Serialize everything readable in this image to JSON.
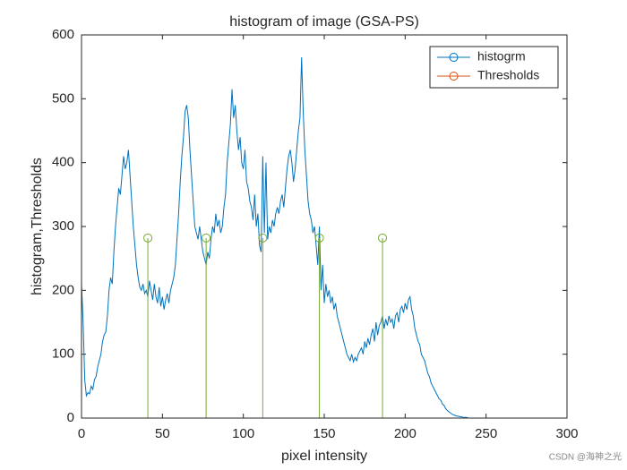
{
  "chart_data": {
    "type": "line",
    "title": "histogram of image (GSA-PS)",
    "x_label": "pixel intensity",
    "y_label": "histogram,Thresholds",
    "watermark": "CSDN @海神之光",
    "xlim": [
      0,
      300
    ],
    "xticks": [
      0,
      50,
      100,
      150,
      200,
      250,
      300
    ],
    "ylim": [
      0,
      600
    ],
    "yticks": [
      0,
      100,
      200,
      300,
      400,
      500,
      600
    ],
    "legend": "top-right",
    "series": [
      {
        "name": "histogrm",
        "color": "#0072bd",
        "style": "line",
        "x": [
          0,
          1,
          2,
          3,
          4,
          5,
          6,
          7,
          8,
          9,
          10,
          11,
          12,
          13,
          14,
          15,
          16,
          17,
          18,
          19,
          20,
          21,
          22,
          23,
          24,
          25,
          26,
          27,
          28,
          29,
          30,
          31,
          32,
          33,
          34,
          35,
          36,
          37,
          38,
          39,
          40,
          41,
          42,
          43,
          44,
          45,
          46,
          47,
          48,
          49,
          50,
          51,
          52,
          53,
          54,
          55,
          56,
          57,
          58,
          59,
          60,
          61,
          62,
          63,
          64,
          65,
          66,
          67,
          68,
          69,
          70,
          71,
          72,
          73,
          74,
          75,
          76,
          77,
          78,
          79,
          80,
          81,
          82,
          83,
          84,
          85,
          86,
          87,
          88,
          89,
          90,
          91,
          92,
          93,
          94,
          95,
          96,
          97,
          98,
          99,
          100,
          101,
          102,
          103,
          104,
          105,
          106,
          107,
          108,
          109,
          110,
          111,
          112,
          113,
          114,
          115,
          116,
          117,
          118,
          119,
          120,
          121,
          122,
          123,
          124,
          125,
          126,
          127,
          128,
          129,
          130,
          131,
          132,
          133,
          134,
          135,
          136,
          137,
          138,
          139,
          140,
          141,
          142,
          143,
          144,
          145,
          146,
          147,
          148,
          149,
          150,
          151,
          152,
          153,
          154,
          155,
          156,
          157,
          158,
          159,
          160,
          161,
          162,
          163,
          164,
          165,
          166,
          167,
          168,
          169,
          170,
          171,
          172,
          173,
          174,
          175,
          176,
          177,
          178,
          179,
          180,
          181,
          182,
          183,
          184,
          185,
          186,
          187,
          188,
          189,
          190,
          191,
          192,
          193,
          194,
          195,
          196,
          197,
          198,
          199,
          200,
          201,
          202,
          203,
          204,
          205,
          206,
          207,
          208,
          209,
          210,
          211,
          212,
          213,
          214,
          215,
          216,
          217,
          218,
          219,
          220,
          221,
          222,
          223,
          224,
          225,
          226,
          227,
          228,
          229,
          230,
          231,
          232,
          233,
          234,
          235,
          236,
          237,
          238,
          239,
          240,
          241,
          242,
          243,
          244,
          245,
          246,
          247,
          248,
          249,
          250,
          251,
          252,
          253,
          254,
          255
        ],
        "values": [
          210,
          150,
          60,
          35,
          40,
          38,
          50,
          45,
          60,
          65,
          80,
          90,
          100,
          120,
          130,
          135,
          160,
          200,
          220,
          210,
          260,
          300,
          330,
          360,
          350,
          380,
          410,
          390,
          400,
          420,
          380,
          340,
          300,
          270,
          240,
          220,
          205,
          200,
          210,
          195,
          200,
          190,
          215,
          200,
          185,
          210,
          190,
          180,
          205,
          175,
          190,
          170,
          185,
          195,
          180,
          200,
          210,
          220,
          240,
          280,
          320,
          370,
          410,
          440,
          480,
          490,
          470,
          420,
          380,
          340,
          300,
          290,
          280,
          300,
          280,
          260,
          250,
          240,
          260,
          250,
          280,
          300,
          290,
          320,
          300,
          310,
          290,
          300,
          330,
          350,
          400,
          430,
          460,
          515,
          470,
          490,
          450,
          420,
          440,
          400,
          390,
          420,
          370,
          360,
          340,
          330,
          310,
          350,
          300,
          320,
          270,
          260,
          410,
          290,
          400,
          280,
          300,
          290,
          310,
          300,
          320,
          330,
          320,
          340,
          350,
          330,
          360,
          390,
          410,
          420,
          400,
          370,
          390,
          420,
          450,
          470,
          565,
          480,
          420,
          380,
          340,
          320,
          310,
          290,
          300,
          270,
          240,
          300,
          200,
          240,
          180,
          210,
          190,
          200,
          180,
          190,
          170,
          180,
          160,
          150,
          140,
          130,
          120,
          110,
          100,
          95,
          90,
          100,
          88,
          95,
          90,
          100,
          105,
          110,
          100,
          120,
          110,
          125,
          115,
          130,
          140,
          120,
          150,
          130,
          145,
          150,
          160,
          140,
          155,
          145,
          160,
          150,
          155,
          140,
          160,
          165,
          150,
          170,
          175,
          165,
          180,
          170,
          185,
          190,
          170,
          160,
          140,
          130,
          120,
          115,
          100,
          95,
          90,
          80,
          70,
          65,
          55,
          50,
          45,
          40,
          35,
          30,
          28,
          22,
          20,
          15,
          12,
          10,
          8,
          6,
          5,
          4,
          3,
          3,
          2,
          2,
          1,
          1,
          1,
          0,
          0,
          0,
          0,
          0,
          0,
          0,
          0,
          0,
          0,
          0,
          0,
          0,
          0,
          0,
          0,
          0
        ]
      },
      {
        "name": "Thresholds",
        "color": "#d95319",
        "stem_color": "#77ac30",
        "style": "stem",
        "x": [
          41,
          77,
          112,
          147,
          186
        ],
        "values": [
          282,
          282,
          282,
          282,
          282
        ]
      }
    ]
  }
}
